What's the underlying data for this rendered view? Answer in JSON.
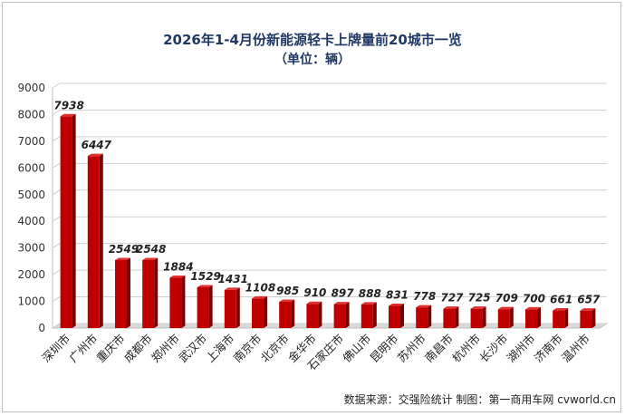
{
  "chart_data": {
    "type": "bar",
    "title": "2026年1-4月份新能源轻卡上牌量前20城市一览",
    "subtitle": "（单位：辆）",
    "categories": [
      "深圳市",
      "广州市",
      "重庆市",
      "成都市",
      "郑州市",
      "武汉市",
      "上海市",
      "南京市",
      "北京市",
      "金华市",
      "石家庄市",
      "佛山市",
      "昆明市",
      "苏州市",
      "南昌市",
      "杭州市",
      "长沙市",
      "湖州市",
      "济南市",
      "温州市"
    ],
    "values": [
      7938,
      6447,
      2549,
      2548,
      1884,
      1529,
      1431,
      1108,
      985,
      910,
      897,
      888,
      831,
      778,
      727,
      725,
      709,
      700,
      661,
      657
    ],
    "ylim": [
      0,
      9000
    ],
    "yticks": [
      0,
      1000,
      2000,
      3000,
      4000,
      5000,
      6000,
      7000,
      8000,
      9000
    ],
    "grid": true,
    "style": "3d-bar",
    "bar_color": "#c00000",
    "bar_side_color": "#7a0000",
    "bar_top_color": "#e03030"
  },
  "source_text": "数据来源：交强险统计  制图：第一商用车网 cvworld.cn"
}
